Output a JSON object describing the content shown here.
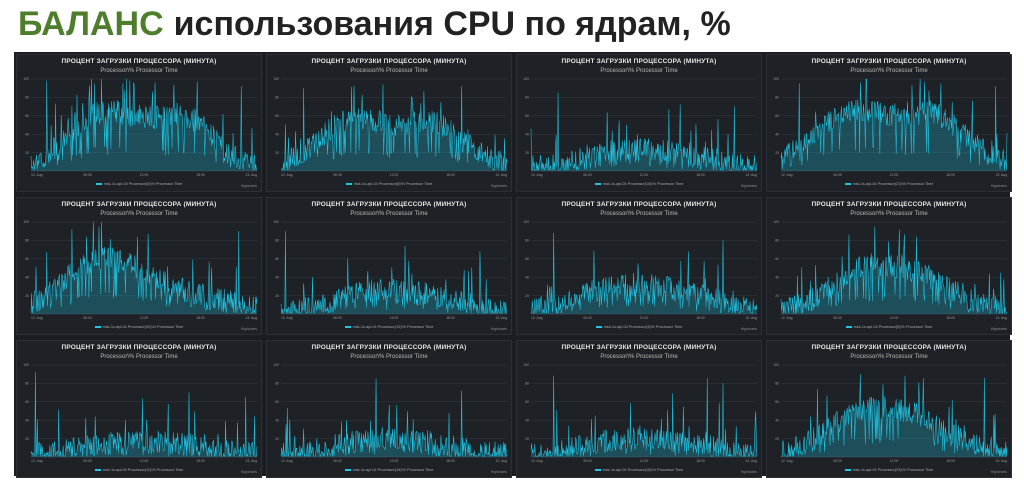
{
  "page_title": {
    "accent": "БАЛАНС",
    "rest": "использования CPU по ядрам, %"
  },
  "colors": {
    "accent": "#4e7d2c",
    "panel_bg": "#1e2126",
    "grid_bg": "#1a1d21",
    "series": "#21c6e4"
  },
  "chart_data": [
    {
      "type": "area",
      "title": "ПРОЦЕНТ ЗАГРУЗКИ ПРОЦЕССОРА (МИНУТА)",
      "subtitle": "Processor\\% Processor Time",
      "y_ticks": [
        "100",
        "80",
        "60",
        "40",
        "20"
      ],
      "x_ticks": [
        "12. Aug",
        "06:00",
        "12:00",
        "18:00",
        "13. Aug"
      ],
      "ylim": [
        0,
        100
      ],
      "series": [
        {
          "name": "msk-1s-apl-04 Processor(0)\\% Processor Time",
          "base": [
            8,
            22,
            45,
            62,
            65,
            60,
            58,
            62,
            55,
            35,
            15,
            10
          ],
          "spikes": [
            {
              "pos": 0.07,
              "value": 98
            },
            {
              "pos": 0.28,
              "value": 95
            },
            {
              "pos": 0.55,
              "value": 96
            },
            {
              "pos": 0.93,
              "value": 92
            }
          ]
        }
      ],
      "credit": "Highcharts"
    },
    {
      "type": "area",
      "title": "ПРОЦЕНТ ЗАГРУЗКИ ПРОЦЕССОРА (МИНУТА)",
      "subtitle": "Processor\\% Processor Time",
      "y_ticks": [
        "100",
        "80",
        "60",
        "40",
        "20"
      ],
      "x_ticks": [
        "12. Aug",
        "06:00",
        "12:00",
        "18:00",
        "13. Aug"
      ],
      "ylim": [
        0,
        100
      ],
      "series": [
        {
          "name": "msk-1s-apl-04 Processor(8)\\% Processor Time",
          "base": [
            8,
            18,
            38,
            55,
            58,
            52,
            50,
            55,
            48,
            30,
            14,
            9
          ],
          "spikes": [
            {
              "pos": 0.1,
              "value": 90
            },
            {
              "pos": 0.45,
              "value": 94
            },
            {
              "pos": 0.8,
              "value": 92
            }
          ]
        }
      ],
      "credit": "Highcharts"
    },
    {
      "type": "area",
      "title": "ПРОЦЕНТ ЗАГРУЗКИ ПРОЦЕССОРА (МИНУТА)",
      "subtitle": "Processor\\% Processor Time",
      "y_ticks": [
        "100",
        "80",
        "60",
        "40",
        "20"
      ],
      "x_ticks": [
        "12. Aug",
        "06:00",
        "12:00",
        "18:00",
        "13. Aug"
      ],
      "ylim": [
        0,
        100
      ],
      "series": [
        {
          "name": "msk-1s-apl-04 Processor(16)\\% Processor Time",
          "base": [
            4,
            6,
            10,
            16,
            22,
            24,
            22,
            20,
            18,
            12,
            6,
            4
          ],
          "spikes": [
            {
              "pos": 0.12,
              "value": 85
            },
            {
              "pos": 0.66,
              "value": 72
            },
            {
              "pos": 0.9,
              "value": 70
            }
          ]
        }
      ],
      "credit": "Highcharts"
    },
    {
      "type": "area",
      "title": "ПРОЦЕНТ ЗАГРУЗКИ ПРОЦЕССОРА (МИНУТА)",
      "subtitle": "Processor\\% Processor Time",
      "y_ticks": [
        "100",
        "80",
        "60",
        "40",
        "20"
      ],
      "x_ticks": [
        "12. Aug",
        "06:00",
        "12:00",
        "18:00",
        "13. Aug"
      ],
      "ylim": [
        0,
        100
      ],
      "series": [
        {
          "name": "msk-1s-apl-04 Processor(21)\\% Processor Time",
          "base": [
            12,
            26,
            48,
            62,
            66,
            62,
            60,
            64,
            58,
            40,
            20,
            12
          ],
          "spikes": [
            {
              "pos": 0.08,
              "value": 95
            },
            {
              "pos": 0.35,
              "value": 96
            },
            {
              "pos": 0.95,
              "value": 92
            }
          ]
        }
      ],
      "credit": "Highcharts"
    },
    {
      "type": "area",
      "title": "ПРОЦЕНТ ЗАГРУЗКИ ПРОЦЕССОРА (МИНУТА)",
      "subtitle": "Processor\\% Processor Time",
      "y_ticks": [
        "100",
        "80",
        "60",
        "40",
        "20"
      ],
      "x_ticks": [
        "12. Aug",
        "06:00",
        "12:00",
        "18:00",
        "13. Aug"
      ],
      "ylim": [
        0,
        100
      ],
      "series": [
        {
          "name": "msk-1s-apl-04 Processor(20)\\% Processor Time",
          "base": [
            10,
            24,
            44,
            58,
            60,
            52,
            40,
            30,
            22,
            16,
            12,
            10
          ],
          "spikes": [
            {
              "pos": 0.18,
              "value": 92
            },
            {
              "pos": 0.3,
              "value": 95
            },
            {
              "pos": 0.92,
              "value": 90
            }
          ]
        }
      ],
      "credit": "Highcharts"
    },
    {
      "type": "area",
      "title": "ПРОЦЕНТ ЗАГРУЗКИ ПРОЦЕССОРА (МИНУТА)",
      "subtitle": "Processor\\% Processor Time",
      "y_ticks": [
        "100",
        "80",
        "60",
        "40",
        "20"
      ],
      "x_ticks": [
        "12. Aug",
        "06:00",
        "12:00",
        "18:00",
        "13. Aug"
      ],
      "ylim": [
        0,
        100
      ],
      "series": [
        {
          "name": "msk-1s-apl-04 Processor(10)\\% Processor Time",
          "base": [
            4,
            6,
            10,
            18,
            24,
            26,
            24,
            22,
            18,
            12,
            6,
            4
          ],
          "spikes": [
            {
              "pos": 0.02,
              "value": 90
            },
            {
              "pos": 0.55,
              "value": 74
            },
            {
              "pos": 0.88,
              "value": 68
            }
          ]
        }
      ],
      "credit": "Highcharts"
    },
    {
      "type": "area",
      "title": "ПРОЦЕНТ ЗАГРУЗКИ ПРОЦЕССОРА (МИНУТА)",
      "subtitle": "Processor\\% Processor Time",
      "y_ticks": [
        "100",
        "80",
        "60",
        "40",
        "20"
      ],
      "x_ticks": [
        "12. Aug",
        "06:00",
        "12:00",
        "18:00",
        "13. Aug"
      ],
      "ylim": [
        0,
        100
      ],
      "series": [
        {
          "name": "msk-1s-apl-04 Processor(4)\\% Processor Time",
          "base": [
            5,
            8,
            14,
            24,
            30,
            32,
            30,
            28,
            22,
            14,
            8,
            5
          ],
          "spikes": [
            {
              "pos": 0.1,
              "value": 88
            },
            {
              "pos": 0.5,
              "value": 78
            },
            {
              "pos": 0.85,
              "value": 80
            }
          ]
        }
      ],
      "credit": "Highcharts"
    },
    {
      "type": "area",
      "title": "ПРОЦЕНТ ЗАГРУЗКИ ПРОЦЕССОРА (МИНУТА)",
      "subtitle": "Processor\\% Processor Time",
      "y_ticks": [
        "100",
        "80",
        "60",
        "40",
        "20"
      ],
      "x_ticks": [
        "12. Aug",
        "06:00",
        "12:00",
        "18:00",
        "13. Aug"
      ],
      "ylim": [
        0,
        100
      ],
      "series": [
        {
          "name": "msk-1s-apl-04 Processor(5)\\% Processor Time",
          "base": [
            5,
            10,
            22,
            40,
            52,
            55,
            50,
            44,
            30,
            18,
            8,
            5
          ],
          "spikes": [
            {
              "pos": 0.3,
              "value": 86
            },
            {
              "pos": 0.6,
              "value": 84
            }
          ]
        }
      ],
      "credit": "Highcharts"
    },
    {
      "type": "area",
      "title": "ПРОЦЕНТ ЗАГРУЗКИ ПРОЦЕССОРА (МИНУТА)",
      "subtitle": "Processor\\% Processor Time",
      "y_ticks": [
        "100",
        "80",
        "60",
        "40",
        "20"
      ],
      "x_ticks": [
        "12. Aug",
        "06:00",
        "12:00",
        "18:00",
        "13. Aug"
      ],
      "ylim": [
        0,
        100
      ],
      "series": [
        {
          "name": "msk-1s-apl-04 Processor(11)\\% Processor Time",
          "base": [
            3,
            4,
            8,
            12,
            16,
            17,
            16,
            14,
            12,
            8,
            4,
            3
          ],
          "spikes": [
            {
              "pos": 0.02,
              "value": 92
            },
            {
              "pos": 0.7,
              "value": 70
            },
            {
              "pos": 0.95,
              "value": 65
            }
          ]
        }
      ],
      "credit": "Highcharts"
    },
    {
      "type": "area",
      "title": "ПРОЦЕНТ ЗАГРУЗКИ ПРОЦЕССОРА (МИНУТА)",
      "subtitle": "Processor\\% Processor Time",
      "y_ticks": [
        "100",
        "80",
        "60",
        "40",
        "20"
      ],
      "x_ticks": [
        "12. Aug",
        "06:00",
        "12:00",
        "18:00",
        "13. Aug"
      ],
      "ylim": [
        0,
        100
      ],
      "series": [
        {
          "name": "msk-1s-apl-04 Processor(16)\\% Processor Time",
          "base": [
            3,
            5,
            9,
            14,
            18,
            20,
            18,
            16,
            13,
            8,
            5,
            3
          ],
          "spikes": [
            {
              "pos": 0.42,
              "value": 85
            },
            {
              "pos": 0.8,
              "value": 72
            }
          ]
        }
      ],
      "credit": "Highcharts"
    },
    {
      "type": "area",
      "title": "ПРОЦЕНТ ЗАГРУЗКИ ПРОЦЕССОРА (МИНУТА)",
      "subtitle": "Processor\\% Processor Time",
      "y_ticks": [
        "100",
        "80",
        "60",
        "40",
        "20"
      ],
      "x_ticks": [
        "12. Aug",
        "06:00",
        "12:00",
        "18:00",
        "13. Aug"
      ],
      "ylim": [
        0,
        100
      ],
      "series": [
        {
          "name": "msk-1s-apl-04 Processor(18)\\% Processor Time",
          "base": [
            3,
            5,
            9,
            14,
            18,
            20,
            19,
            17,
            14,
            9,
            5,
            3
          ],
          "spikes": [
            {
              "pos": 0.1,
              "value": 88
            },
            {
              "pos": 0.78,
              "value": 86
            },
            {
              "pos": 0.85,
              "value": 80
            }
          ]
        }
      ],
      "credit": "Highcharts"
    },
    {
      "type": "area",
      "title": "ПРОЦЕНТ ЗАГРУЗКИ ПРОЦЕССОРА (МИНУТА)",
      "subtitle": "Processor\\% Processor Time",
      "y_ticks": [
        "100",
        "80",
        "60",
        "40",
        "20"
      ],
      "x_ticks": [
        "12. Aug",
        "06:00",
        "12:00",
        "18:00",
        "13. Aug"
      ],
      "ylim": [
        0,
        100
      ],
      "series": [
        {
          "name": "msk-1s-apl-04 Processor(23)\\% Processor Time",
          "base": [
            6,
            12,
            26,
            42,
            52,
            54,
            50,
            44,
            30,
            18,
            10,
            6
          ],
          "spikes": [
            {
              "pos": 0.35,
              "value": 90
            },
            {
              "pos": 0.55,
              "value": 88
            },
            {
              "pos": 0.9,
              "value": 86
            }
          ]
        }
      ],
      "credit": "Highcharts"
    }
  ]
}
